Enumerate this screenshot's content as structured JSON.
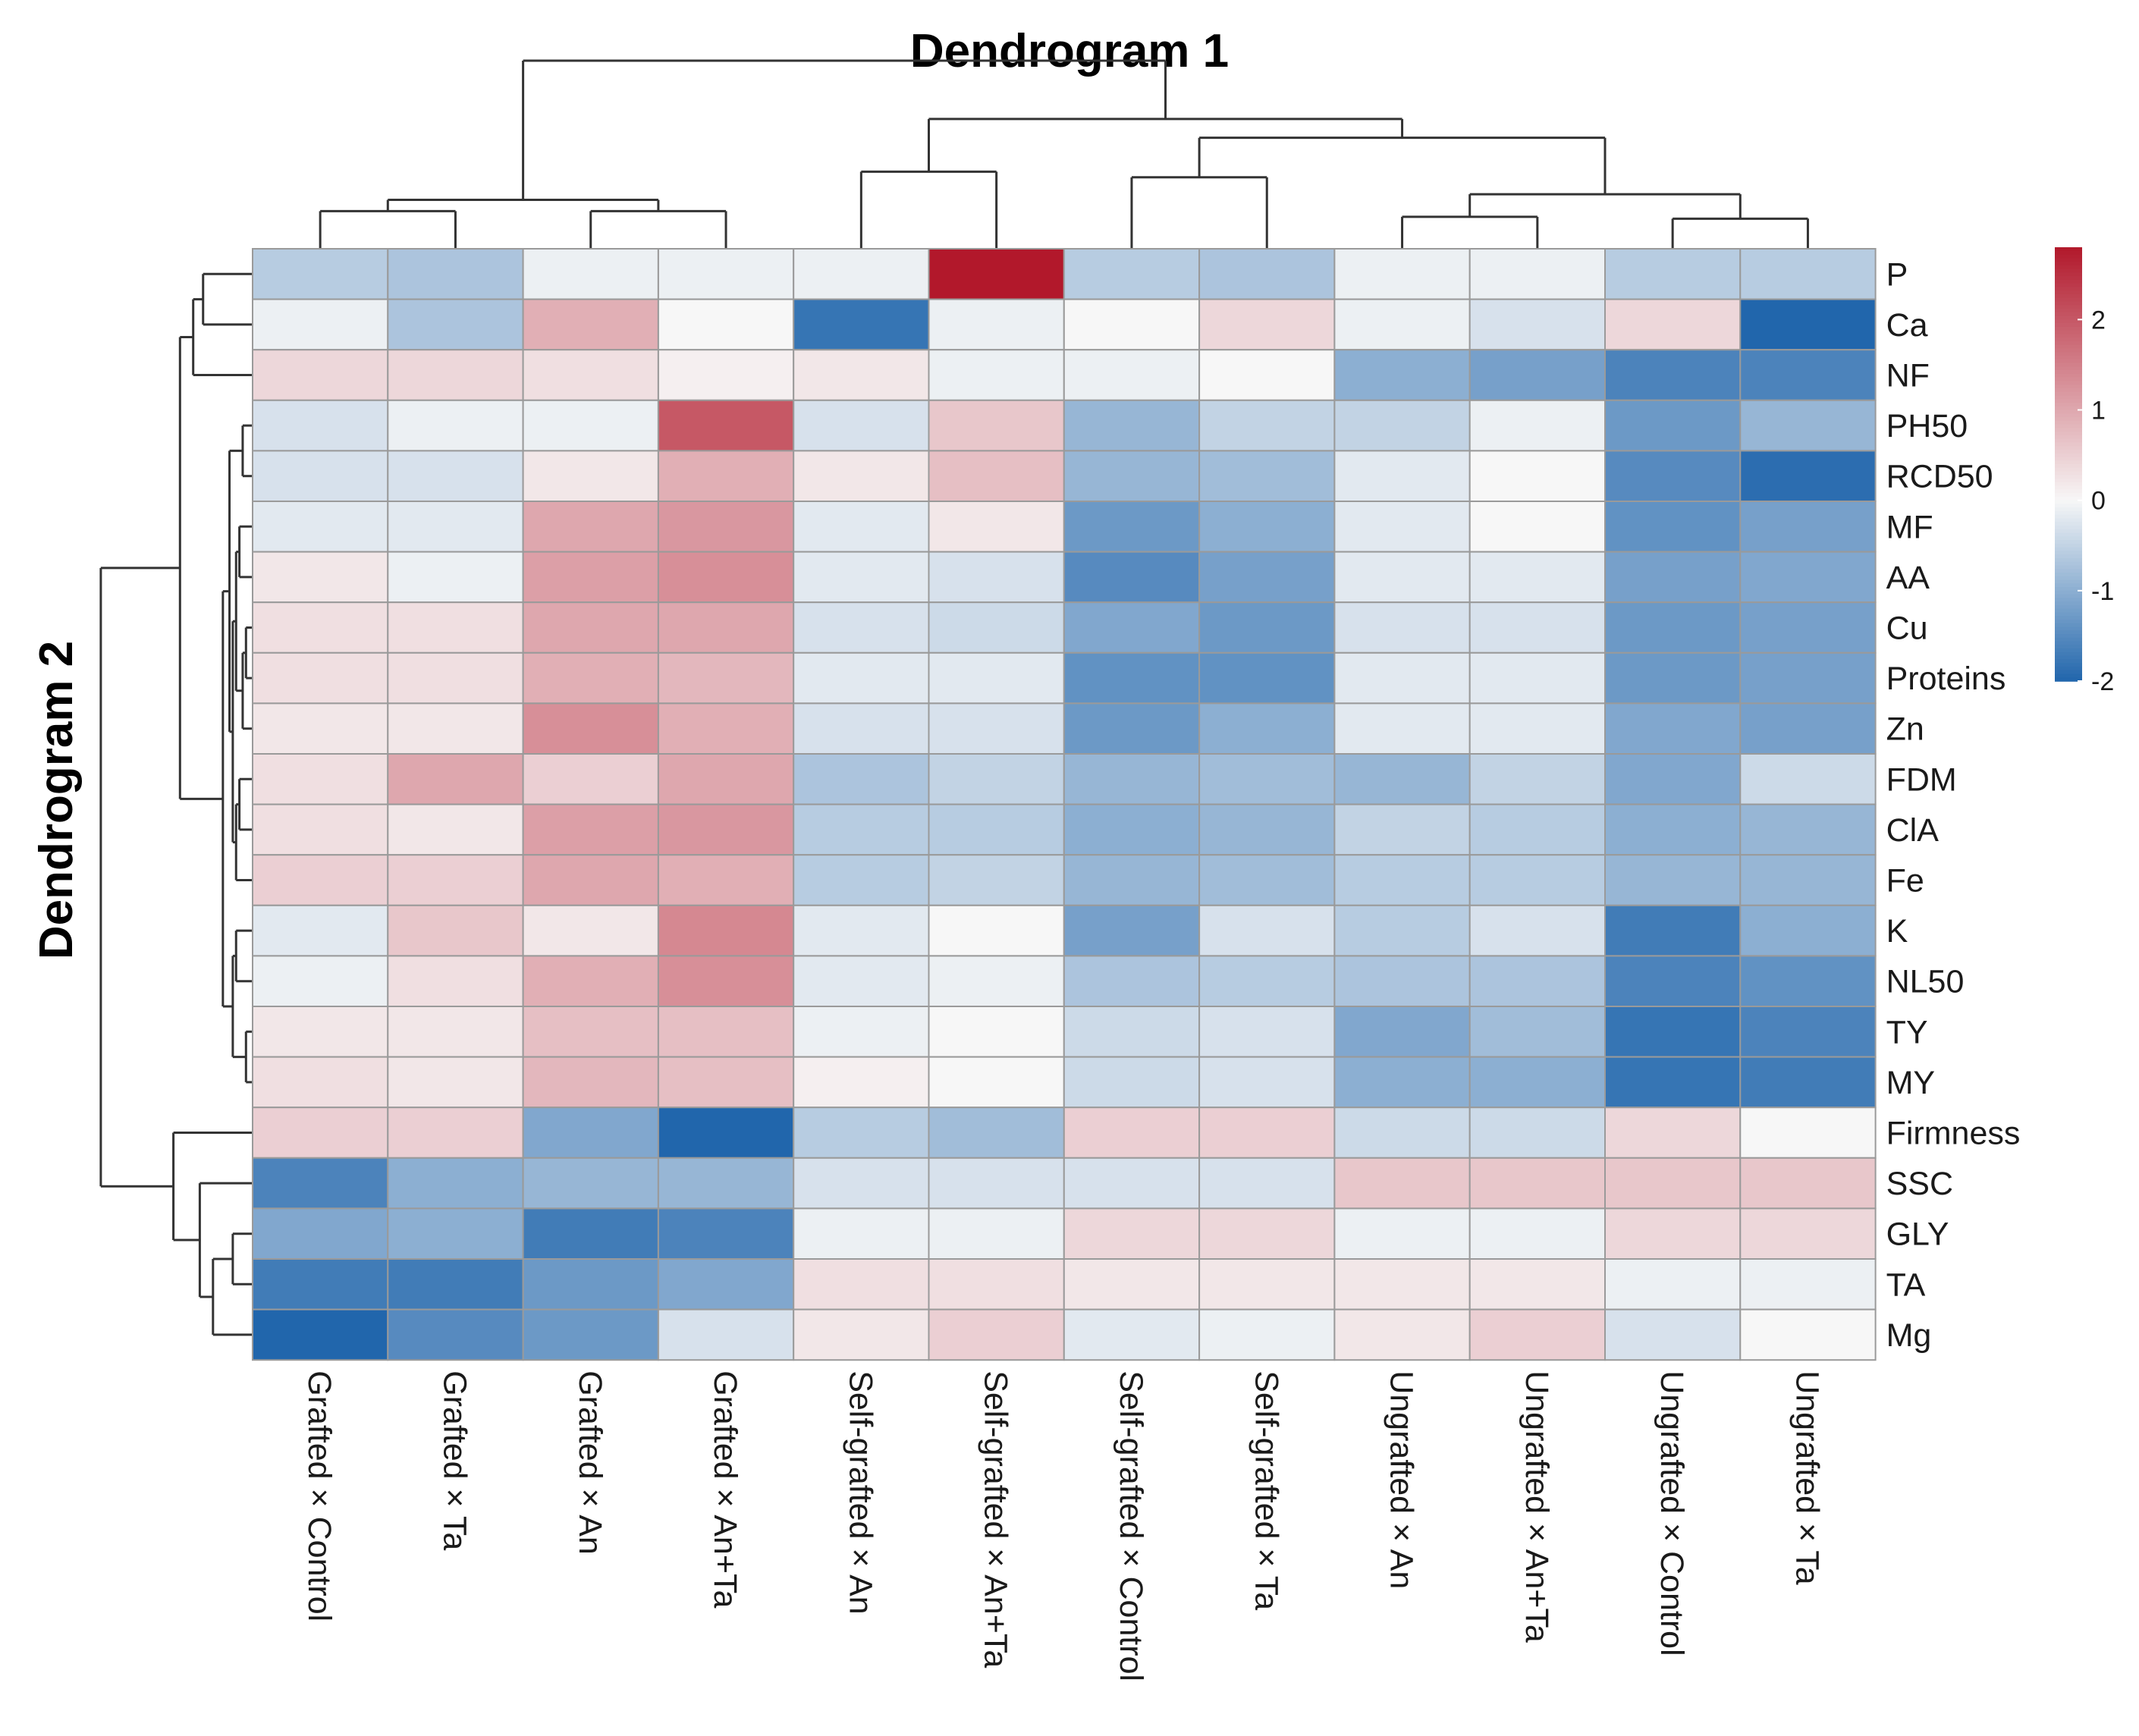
{
  "chart_data": {
    "type": "heatmap",
    "title_top": "Dendrogram 1",
    "title_left": "Dendrogram 2",
    "columns": [
      "Grafted × Control",
      "Grafted × Ta",
      "Grafted × An",
      "Grafted × An+Ta",
      "Self-grafted × An",
      "Self-grafted × An+Ta",
      "Self-grafted × Control",
      "Self-grafted × Ta",
      "Ungrafted × An",
      "Ungrafted × An+Ta",
      "Ungrafted × Control",
      "Ungrafted × Ta"
    ],
    "rows": [
      "P",
      "Ca",
      "NF",
      "PH50",
      "RCD50",
      "MF",
      "AA",
      "Cu",
      "Proteins",
      "Zn",
      "FDM",
      "ClA",
      "Fe",
      "K",
      "NL50",
      "TY",
      "MY",
      "Firmness",
      "SSC",
      "GLY",
      "TA",
      "Mg"
    ],
    "values": [
      [
        -0.6,
        -0.7,
        -0.1,
        -0.1,
        -0.1,
        2.8,
        -0.6,
        -0.7,
        -0.1,
        -0.1,
        -0.6,
        -0.6
      ],
      [
        -0.1,
        -0.7,
        0.9,
        0.0,
        -1.8,
        -0.1,
        0.0,
        0.4,
        -0.1,
        -0.3,
        0.4,
        -2.0
      ],
      [
        0.4,
        0.4,
        0.3,
        0.1,
        0.2,
        -0.1,
        -0.1,
        0.0,
        -1.0,
        -1.2,
        -1.6,
        -1.6
      ],
      [
        -0.3,
        -0.1,
        -0.1,
        2.0,
        -0.3,
        0.6,
        -0.9,
        -0.5,
        -0.5,
        -0.1,
        -1.3,
        -0.9
      ],
      [
        -0.3,
        -0.3,
        0.2,
        0.9,
        0.2,
        0.7,
        -0.9,
        -0.8,
        -0.2,
        0.0,
        -1.5,
        -1.9
      ],
      [
        -0.2,
        -0.2,
        1.0,
        1.2,
        -0.2,
        0.2,
        -1.3,
        -1.0,
        -0.2,
        0.0,
        -1.4,
        -1.2
      ],
      [
        0.2,
        -0.1,
        1.1,
        1.3,
        -0.2,
        -0.3,
        -1.5,
        -1.2,
        -0.2,
        -0.2,
        -1.2,
        -1.1
      ],
      [
        0.3,
        0.3,
        1.0,
        1.0,
        -0.3,
        -0.4,
        -1.1,
        -1.3,
        -0.3,
        -0.3,
        -1.3,
        -1.2
      ],
      [
        0.3,
        0.3,
        0.9,
        0.8,
        -0.2,
        -0.2,
        -1.4,
        -1.4,
        -0.2,
        -0.2,
        -1.3,
        -1.2
      ],
      [
        0.2,
        0.2,
        1.3,
        0.9,
        -0.3,
        -0.3,
        -1.3,
        -1.0,
        -0.2,
        -0.2,
        -1.1,
        -1.2
      ],
      [
        0.3,
        1.0,
        0.5,
        1.0,
        -0.7,
        -0.5,
        -0.9,
        -0.8,
        -0.9,
        -0.5,
        -1.1,
        -0.4
      ],
      [
        0.3,
        0.2,
        1.1,
        1.2,
        -0.6,
        -0.6,
        -1.0,
        -0.9,
        -0.5,
        -0.6,
        -1.0,
        -0.9
      ],
      [
        0.5,
        0.5,
        1.0,
        0.9,
        -0.6,
        -0.5,
        -0.9,
        -0.8,
        -0.6,
        -0.6,
        -0.9,
        -0.9
      ],
      [
        -0.2,
        0.6,
        0.2,
        1.4,
        -0.2,
        0.0,
        -1.2,
        -0.3,
        -0.6,
        -0.3,
        -1.7,
        -1.0
      ],
      [
        -0.1,
        0.3,
        0.9,
        1.3,
        -0.2,
        -0.1,
        -0.7,
        -0.6,
        -0.7,
        -0.7,
        -1.6,
        -1.4
      ],
      [
        0.2,
        0.2,
        0.7,
        0.7,
        -0.1,
        0.0,
        -0.4,
        -0.3,
        -1.1,
        -0.8,
        -1.8,
        -1.6
      ],
      [
        0.3,
        0.2,
        0.8,
        0.7,
        0.1,
        0.0,
        -0.4,
        -0.3,
        -1.0,
        -1.0,
        -1.8,
        -1.7
      ],
      [
        0.5,
        0.5,
        -1.1,
        -2.0,
        -0.6,
        -0.8,
        0.5,
        0.5,
        -0.4,
        -0.4,
        0.4,
        0.0
      ],
      [
        -1.6,
        -1.0,
        -0.9,
        -0.9,
        -0.3,
        -0.3,
        -0.3,
        -0.3,
        0.6,
        0.6,
        0.6,
        0.6
      ],
      [
        -1.1,
        -1.0,
        -1.7,
        -1.6,
        -0.1,
        -0.1,
        0.4,
        0.4,
        -0.1,
        -0.1,
        0.4,
        0.4
      ],
      [
        -1.7,
        -1.7,
        -1.3,
        -1.1,
        0.3,
        0.3,
        0.2,
        0.2,
        0.2,
        0.2,
        -0.1,
        -0.1
      ],
      [
        -2.0,
        -1.5,
        -1.3,
        -0.3,
        0.2,
        0.5,
        -0.2,
        -0.1,
        0.2,
        0.5,
        -0.3,
        0.0
      ]
    ],
    "color_scale": {
      "min": -2,
      "max": 2.8,
      "low": "#2166ac",
      "mid": "#f7f7f7",
      "high": "#b2182b"
    },
    "legend_ticks": [
      "2",
      "1",
      "0",
      "-1",
      "-2"
    ],
    "legend_tick_values": [
      2,
      1,
      0,
      -1,
      -2
    ]
  }
}
